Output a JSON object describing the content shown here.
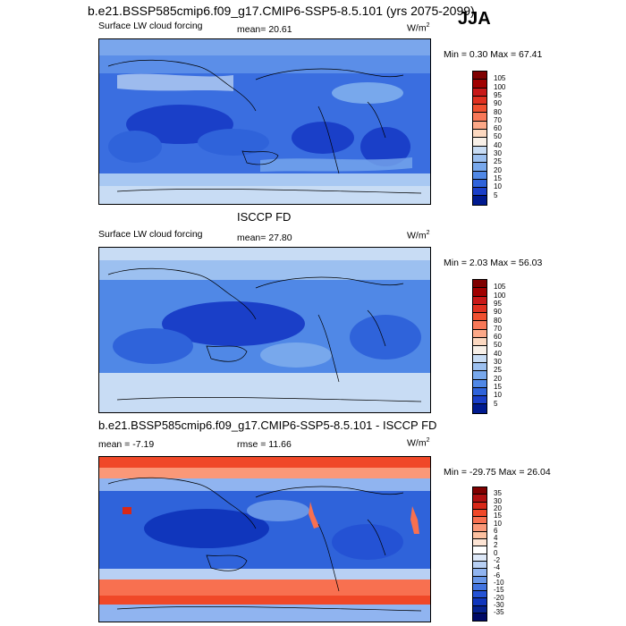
{
  "header": {
    "title": "b.e21.BSSP585cmip6.f09_g17.CMIP6-SSP5-8.5.101 (yrs 2075-2099)",
    "season": "JJA"
  },
  "panels": [
    {
      "title": "",
      "variable": "Surface LW cloud forcing",
      "stat_text": "mean=  20.61",
      "units_base": "W/m",
      "units_exp": "2",
      "minmax": "Min =   0.30 Max =  67.41",
      "colorbar": {
        "labels": [
          "105",
          "100",
          "95",
          "90",
          "80",
          "70",
          "60",
          "50",
          "40",
          "30",
          "25",
          "20",
          "15",
          "10",
          "5"
        ],
        "colors": [
          "#7f0000",
          "#a00000",
          "#c81818",
          "#e03020",
          "#f05030",
          "#f87858",
          "#fca888",
          "#fcd8c0",
          "#f8f0e8",
          "#c8dcf4",
          "#9cc0f0",
          "#78a8ec",
          "#5088e6",
          "#2f63da",
          "#1a3fc8",
          "#001a8f"
        ]
      }
    },
    {
      "title": "ISCCP FD",
      "variable": "Surface LW cloud forcing",
      "stat_text": "mean=  27.80",
      "units_base": "W/m",
      "units_exp": "2",
      "minmax": "Min =   2.03 Max =  56.03",
      "colorbar": {
        "labels": [
          "105",
          "100",
          "95",
          "90",
          "80",
          "70",
          "60",
          "50",
          "40",
          "30",
          "25",
          "20",
          "15",
          "10",
          "5"
        ],
        "colors": [
          "#7f0000",
          "#a00000",
          "#c81818",
          "#e03020",
          "#f05030",
          "#f87858",
          "#fca888",
          "#fcd8c0",
          "#f8f0e8",
          "#c8dcf4",
          "#9cc0f0",
          "#78a8ec",
          "#5088e6",
          "#2f63da",
          "#1a3fc8",
          "#001a8f"
        ]
      }
    },
    {
      "title": "b.e21.BSSP585cmip6.f09_g17.CMIP6-SSP5-8.5.101 - ISCCP FD",
      "stat_left": "mean =  -7.19",
      "stat_text": "rmse =  11.66",
      "units_base": "W/m",
      "units_exp": "2",
      "minmax": "Min = -29.75 Max =  26.04",
      "colorbar": {
        "labels": [
          "35",
          "30",
          "20",
          "15",
          "10",
          "6",
          "4",
          "2",
          "0",
          "-2",
          "-4",
          "-6",
          "-10",
          "-15",
          "-20",
          "-30",
          "-35"
        ],
        "colors": [
          "#7f0000",
          "#b01010",
          "#d82818",
          "#f04828",
          "#f87050",
          "#fa9878",
          "#fcc0a0",
          "#fde4d4",
          "#ffffff",
          "#dde8f8",
          "#b8d0f4",
          "#90b4f0",
          "#6896e8",
          "#4274e0",
          "#2452d4",
          "#1036bc",
          "#06228f",
          "#000a66"
        ]
      }
    }
  ]
}
